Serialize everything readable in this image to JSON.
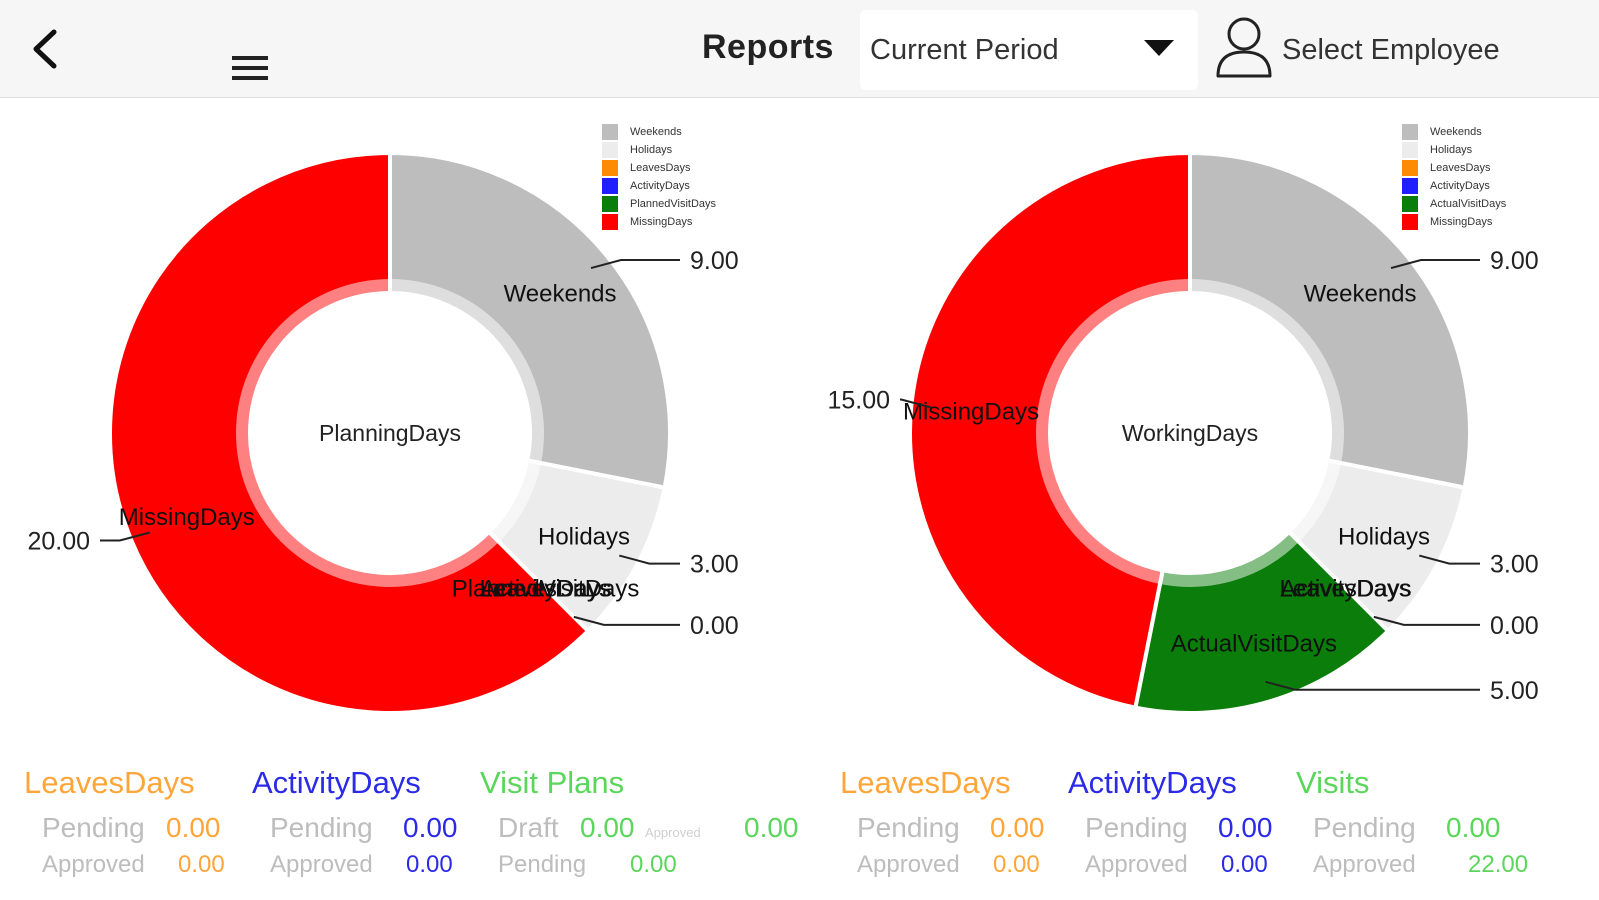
{
  "header": {
    "title": "Reports",
    "period": {
      "selected": "Current Period"
    },
    "employee_label": "Select Employee"
  },
  "colors": {
    "weekends": "#bdbdbd",
    "holidays": "#ececec",
    "leaves": "#ff8c00",
    "activity": "#1f1fff",
    "visits": "#0a7d0a",
    "missing": "#ff0000",
    "leaves_text": "#ffa53a",
    "activity_text": "#2a2ae8",
    "visits_text": "#5ad65a"
  },
  "chart_data": [
    {
      "type": "pie",
      "center_label": "PlanningDays",
      "legend": [
        "Weekends",
        "Holidays",
        "LeavesDays",
        "ActivityDays",
        "PlannedVisitDays",
        "MissingDays"
      ],
      "slices": [
        {
          "name": "Weekends",
          "value": 9,
          "label": "9.00",
          "color": "#bdbdbd"
        },
        {
          "name": "Holidays",
          "value": 3,
          "label": "3.00",
          "color": "#ececec"
        },
        {
          "name": "LeavesDays",
          "value": 0,
          "label": "",
          "color": "#ff8c00"
        },
        {
          "name": "ActivityDays",
          "value": 0,
          "label": "",
          "color": "#1f1fff"
        },
        {
          "name": "PlannedVisitDays",
          "value": 0,
          "label": "0.00",
          "color": "#0a7d0a"
        },
        {
          "name": "MissingDays",
          "value": 20,
          "label": "20.00",
          "color": "#ff0000"
        }
      ]
    },
    {
      "type": "pie",
      "center_label": "WorkingDays",
      "legend": [
        "Weekends",
        "Holidays",
        "LeavesDays",
        "ActivityDays",
        "ActualVisitDays",
        "MissingDays"
      ],
      "slices": [
        {
          "name": "Weekends",
          "value": 9,
          "label": "9.00",
          "color": "#bdbdbd"
        },
        {
          "name": "Holidays",
          "value": 3,
          "label": "3.00",
          "color": "#ececec"
        },
        {
          "name": "LeavesDays",
          "value": 0,
          "label": "",
          "color": "#ff8c00"
        },
        {
          "name": "ActivityDays",
          "value": 0,
          "label": "0.00",
          "color": "#1f1fff"
        },
        {
          "name": "ActualVisitDays",
          "value": 5,
          "label": "5.00",
          "color": "#0a7d0a"
        },
        {
          "name": "MissingDays",
          "value": 15,
          "label": "15.00",
          "color": "#ff0000"
        }
      ]
    }
  ],
  "stats_left": {
    "leaves": {
      "title": "LeavesDays",
      "r1_label": "Pending",
      "r1_value": "0.00",
      "r2_label": "Approved",
      "r2_value": "0.00"
    },
    "activity": {
      "title": "ActivityDays",
      "r1_label": "Pending",
      "r1_value": "0.00",
      "r2_label": "Approved",
      "r2_value": "0.00"
    },
    "visits": {
      "title": "Visit Plans",
      "r1_label": "Draft",
      "r1_value": "0.00",
      "r1_extra_label": "Approved",
      "r1_extra_value": "0.00",
      "r2_label": "Pending",
      "r2_value": "0.00"
    }
  },
  "stats_right": {
    "leaves": {
      "title": "LeavesDays",
      "r1_label": "Pending",
      "r1_value": "0.00",
      "r2_label": "Approved",
      "r2_value": "0.00"
    },
    "activity": {
      "title": "ActivityDays",
      "r1_label": "Pending",
      "r1_value": "0.00",
      "r2_label": "Approved",
      "r2_value": "0.00"
    },
    "visits": {
      "title": "Visits",
      "r1_label": "Pending",
      "r1_value": "0.00",
      "r2_label": "Approved",
      "r2_value": "22.00"
    }
  }
}
